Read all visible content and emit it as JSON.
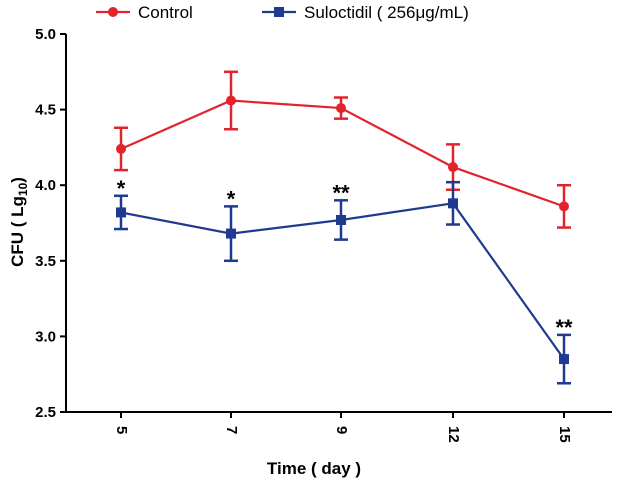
{
  "chart_data": {
    "type": "line",
    "title": "",
    "xlabel": "Time ( day )",
    "ylabel": "CFU ( Lg10)",
    "ylabel_parts": {
      "prefix": "CFU ( Lg",
      "subscript": "10",
      "suffix": ")"
    },
    "categories": [
      "5",
      "7",
      "9",
      "12",
      "15"
    ],
    "ylim": [
      2.5,
      5.0
    ],
    "yticks": [
      "2.5",
      "3.0",
      "3.5",
      "4.0",
      "4.5",
      "5.0"
    ],
    "legend_position": "top",
    "series": [
      {
        "name": "Control",
        "color": "#e3232c",
        "marker": "circle",
        "values": [
          4.24,
          4.56,
          4.51,
          4.12,
          3.86
        ],
        "errors": [
          0.14,
          0.19,
          0.07,
          0.15,
          0.14
        ]
      },
      {
        "name": "Suloctidil ( 256μg/mL)",
        "color": "#1f3a8f",
        "marker": "square",
        "values": [
          3.82,
          3.68,
          3.77,
          3.88,
          2.85
        ],
        "errors": [
          0.11,
          0.18,
          0.13,
          0.14,
          0.16
        ]
      }
    ],
    "annotations": [
      {
        "category": "5",
        "text": "*"
      },
      {
        "category": "7",
        "text": "*"
      },
      {
        "category": "9",
        "text": "**"
      },
      {
        "category": "15",
        "text": "**"
      }
    ]
  }
}
